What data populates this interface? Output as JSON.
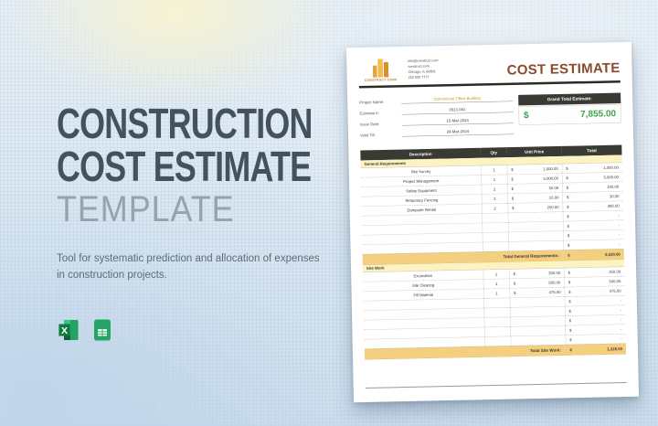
{
  "page": {
    "title_line1": "CONSTRUCTION",
    "title_line2": "COST ESTIMATE",
    "title_line3": "TEMPLATE",
    "description": "Tool for systematic prediction and allocation of expenses in construction projects.",
    "format_icons": [
      "excel-icon",
      "google-sheets-icon"
    ]
  },
  "colors": {
    "title_dark": "#44525f",
    "title_light": "#97a3ac",
    "doc_title_brown": "#8a4a2b",
    "logo_orange": "#e8a33d",
    "dark_bar": "#3a3a35",
    "section_yellow": "#fcf3c2",
    "total_gold": "#f3cf7f",
    "grand_total_green": "#3fa34d",
    "excel_green": "#107c41",
    "sheets_green": "#23a566"
  },
  "document": {
    "company": {
      "logo_text": "CONSTRUCT CORP",
      "contact_lines": [
        "info@construct.com",
        "construct.com",
        "Chicago, IL 60601",
        "222 555 7777"
      ]
    },
    "title": "COST ESTIMATE",
    "info": {
      "labels": [
        "Project Name:",
        "Estimate #:",
        "Issue Date:",
        "Valid Till:"
      ],
      "values": [
        "Commercial Office Building",
        "0513-001",
        "15-Mar-2024",
        "24-Mar-2024"
      ]
    },
    "grand_total": {
      "label": "Grand Total Estimate:",
      "currency": "$",
      "value": "7,855.00"
    },
    "table": {
      "currency": "$",
      "headers": [
        "Description",
        "Qty",
        "Unit Price",
        "Total"
      ],
      "sections": [
        {
          "name": "General Requirements",
          "rows": [
            {
              "desc": "Site Survey",
              "qty": "1",
              "unit": "1,000.00",
              "total": "1,000.00"
            },
            {
              "desc": "Project Management",
              "qty": "1",
              "unit": "5,000.00",
              "total": "5,000.00"
            },
            {
              "desc": "Safety Equipment",
              "qty": "2",
              "unit": "50.00",
              "total": "100.00"
            },
            {
              "desc": "Temporary Fencing",
              "qty": "3",
              "unit": "10.00",
              "total": "30.00"
            },
            {
              "desc": "Dumpster Rental",
              "qty": "2",
              "unit": "200.00",
              "total": "400.00"
            },
            {
              "desc": "",
              "qty": "",
              "unit": "",
              "total": "-"
            },
            {
              "desc": "",
              "qty": "",
              "unit": "",
              "total": "-"
            },
            {
              "desc": "",
              "qty": "",
              "unit": "",
              "total": "-"
            },
            {
              "desc": "",
              "qty": "",
              "unit": "",
              "total": "-"
            }
          ],
          "total_label": "Total General Requirements:",
          "total_value": "6,530.00"
        },
        {
          "name": "Site Work",
          "rows": [
            {
              "desc": "Excavation",
              "qty": "1",
              "unit": "350.00",
              "total": "350.00"
            },
            {
              "desc": "Site Clearing",
              "qty": "1",
              "unit": "500.00",
              "total": "500.00"
            },
            {
              "desc": "Fill Material",
              "qty": "1",
              "unit": "475.00",
              "total": "475.00"
            },
            {
              "desc": "",
              "qty": "",
              "unit": "",
              "total": "-"
            },
            {
              "desc": "",
              "qty": "",
              "unit": "",
              "total": "-"
            },
            {
              "desc": "",
              "qty": "",
              "unit": "",
              "total": "-"
            },
            {
              "desc": "",
              "qty": "",
              "unit": "",
              "total": "-"
            },
            {
              "desc": "",
              "qty": "",
              "unit": "",
              "total": "-"
            }
          ],
          "total_label": "Total Site Work:",
          "total_value": "1,325.00"
        }
      ]
    }
  }
}
